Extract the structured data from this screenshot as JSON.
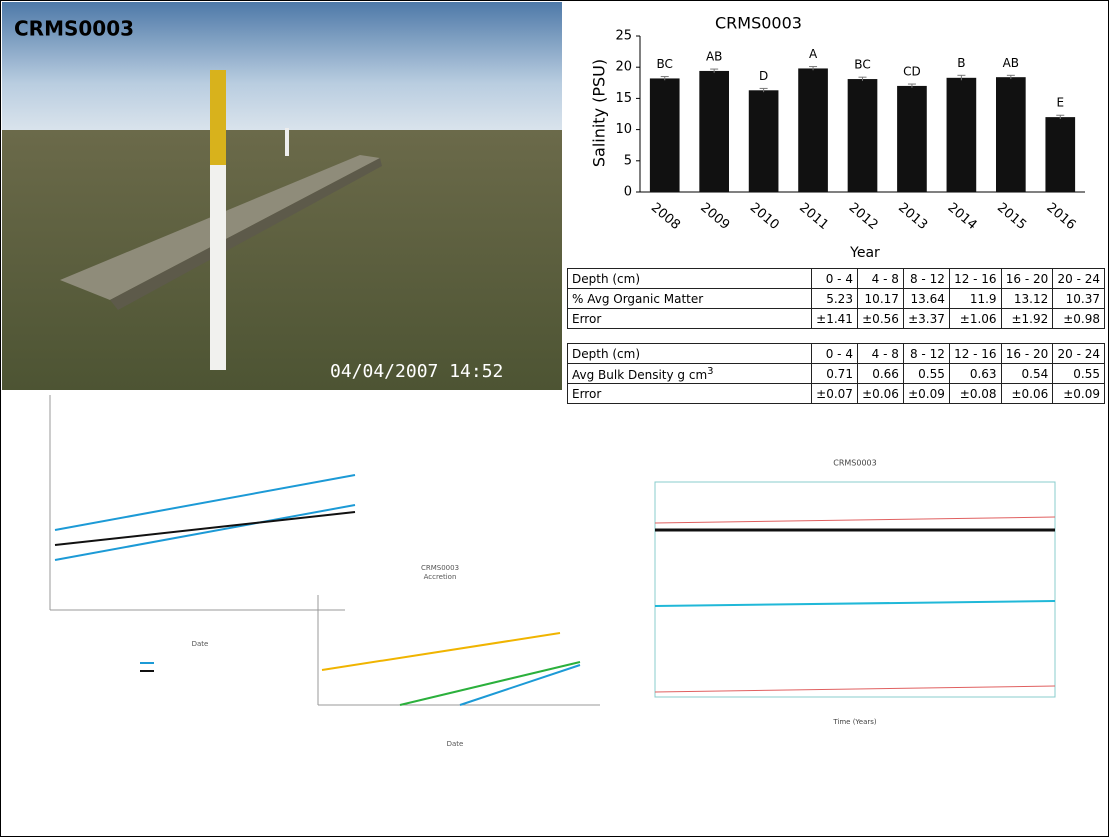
{
  "photo": {
    "label": "CRMS0003",
    "timestamp": "04/04/2007 14:52"
  },
  "chart_data": {
    "type": "bar",
    "title": "CRMS0003",
    "x_label": "Year",
    "y_label": "Salinity (PSU)",
    "categories": [
      "2008",
      "2009",
      "2010",
      "2011",
      "2012",
      "2013",
      "2014",
      "2015",
      "2016"
    ],
    "values": [
      18.2,
      19.4,
      16.3,
      19.8,
      18.1,
      17.0,
      18.3,
      18.4,
      12.0
    ],
    "errors": [
      0.3,
      0.3,
      0.3,
      0.3,
      0.3,
      0.3,
      0.4,
      0.3,
      0.3
    ],
    "annotations": [
      "BC",
      "AB",
      "D",
      "A",
      "BC",
      "CD",
      "B",
      "AB",
      "E"
    ],
    "color": "#111111",
    "ylim": [
      0,
      25
    ],
    "yticks": [
      0,
      5,
      10,
      15,
      20,
      25
    ]
  },
  "tables": [
    {
      "rows": [
        [
          "Depth (cm)",
          "0 - 4",
          "4 - 8",
          "8 - 12",
          "12 - 16",
          "16 - 20",
          "20 - 24"
        ],
        [
          "% Avg Organic Matter",
          "5.23",
          "10.17",
          "13.64",
          "11.9",
          "13.12",
          "10.37"
        ],
        [
          "Error",
          "±1.41",
          "±0.56",
          "±3.37",
          "±1.06",
          "±1.92",
          "±0.98"
        ]
      ]
    },
    {
      "rows": [
        [
          "Depth (cm)",
          "0 - 4",
          "4 - 8",
          "8 - 12",
          "12 - 16",
          "16 - 20",
          "20 - 24"
        ],
        [
          "Avg Bulk Density g cm",
          "0.71",
          "0.66",
          "0.55",
          "0.63",
          "0.54",
          "0.55"
        ],
        [
          "Error",
          "±0.07",
          "±0.06",
          "±0.09",
          "±0.08",
          "±0.06",
          "±0.09"
        ]
      ],
      "unit_exponent": "3"
    }
  ],
  "lower_charts": {
    "left": {
      "x_label": "Date"
    },
    "middle": {
      "title": "CRMS0003",
      "subtitle": "Accretion",
      "x_label": "Date"
    },
    "right": {
      "title": "CRMS0003",
      "x_label": "Time (Years)"
    }
  }
}
